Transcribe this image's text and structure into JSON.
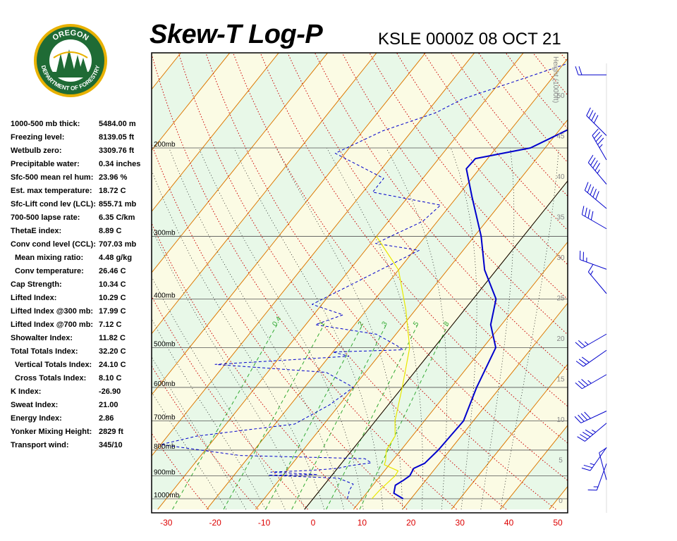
{
  "header": {
    "title": "Skew-T Log-P",
    "station": "KSLE 0000Z 08 OCT 21"
  },
  "logo": {
    "top_text": "OREGON",
    "bottom_text": "DEPARTMENT OF FORESTRY"
  },
  "indices": [
    {
      "label": "1000-500 mb thick:",
      "value": "5484.00 m"
    },
    {
      "label": "Freezing level:",
      "value": "8139.05 ft"
    },
    {
      "label": "Wetbulb zero:",
      "value": "3309.76 ft"
    },
    {
      "label": "Precipitable water:",
      "value": "0.34 inches"
    },
    {
      "label": "Sfc-500 mean rel hum:",
      "value": "23.96 %"
    },
    {
      "label": "Est. max temperature:",
      "value": "18.72 C"
    },
    {
      "label": "Sfc-Lift cond lev (LCL):",
      "value": "855.71 mb"
    },
    {
      "label": "700-500 lapse rate:",
      "value": "6.35 C/km"
    },
    {
      "label": "ThetaE index:",
      "value": "8.89 C"
    },
    {
      "label": "Conv cond level (CCL):",
      "value": "707.03 mb"
    },
    {
      "label": "Mean mixing ratio:",
      "value": "4.48 g/kg",
      "indent": true
    },
    {
      "label": "Conv temperature:",
      "value": "26.46 C",
      "indent": true
    },
    {
      "label": "Cap Strength:",
      "value": "10.34 C"
    },
    {
      "label": "Lifted Index:",
      "value": "10.29 C"
    },
    {
      "label": "Lifted Index @300 mb:",
      "value": "17.99 C"
    },
    {
      "label": "Lifted Index @700 mb:",
      "value": "7.12 C"
    },
    {
      "label": "Showalter Index:",
      "value": "11.82 C"
    },
    {
      "label": "Total Totals Index:",
      "value": "32.20 C"
    },
    {
      "label": "Vertical Totals Index:",
      "value": "24.10 C",
      "indent": true
    },
    {
      "label": "Cross Totals Index:",
      "value": "8.10 C",
      "indent": true
    },
    {
      "label": "K Index:",
      "value": "-26.90"
    },
    {
      "label": "Sweat Index:",
      "value": "21.00"
    },
    {
      "label": "Energy Index:",
      "value": "2.86"
    },
    {
      "label": "Yonker Mixing Height:",
      "value": "2829 ft"
    },
    {
      "label": "Transport wind:",
      "value": "345/10"
    }
  ],
  "colors": {
    "temperature": "#0000cc",
    "dewpoint": "#0000cc",
    "parcel": "#e8e800",
    "isotherm": "#dd7700",
    "dry_adiabat": "#cc0000",
    "moist_adiabat": "#000000",
    "mixing_ratio": "#33aa33",
    "axis_tick": "#dd0000",
    "band_light": "#fbfbe4",
    "band_green": "#e8f8e8",
    "seal_green": "#1f6b35",
    "seal_gold": "#e8b100"
  },
  "chart_data": {
    "type": "line",
    "title": "Skew-T Log-P",
    "xlabel": "",
    "ylabel": "",
    "x_ticks": [
      -30,
      -20,
      -10,
      0,
      10,
      20,
      30,
      40,
      50
    ],
    "xlim": [
      -30,
      50
    ],
    "pressure_levels": [
      200,
      300,
      400,
      500,
      600,
      700,
      800,
      900,
      1000
    ],
    "pressure_level_labels": [
      "200mb",
      "300mb",
      "400mb",
      "500mb",
      "600mb",
      "700mb",
      "800mb",
      "900mb",
      "1000mb"
    ],
    "height_axis_label": "Height (1000ft)",
    "height_ticks": [
      0,
      5,
      10,
      15,
      20,
      25,
      30,
      35,
      40,
      45,
      50
    ],
    "mixing_ratio_labels": [
      "0.4",
      "1",
      "2",
      "3",
      "5",
      "8"
    ],
    "mixing_ratio_values": [
      0.4,
      1,
      2,
      3,
      5,
      8
    ],
    "series": [
      {
        "name": "",
        "style": "solid",
        "points": [
          [
            18.4,
            1000
          ],
          [
            15.6,
            975
          ],
          [
            14.6,
            940
          ],
          [
            15.4,
            920
          ],
          [
            16.0,
            900
          ],
          [
            15.6,
            870
          ],
          [
            17.0,
            850
          ],
          [
            17.6,
            800
          ],
          [
            18.0,
            700
          ],
          [
            15.2,
            600
          ],
          [
            12.6,
            500
          ],
          [
            7.8,
            450
          ],
          [
            4.7,
            400
          ],
          [
            -2.4,
            350
          ],
          [
            -8.6,
            300
          ],
          [
            -17.0,
            250
          ],
          [
            -22.7,
            220
          ],
          [
            -22.5,
            210
          ],
          [
            -13.0,
            200
          ],
          [
            3.0,
            150
          ],
          [
            14.0,
            120
          ]
        ]
      },
      {
        "name": "",
        "style": "dashed",
        "points": [
          [
            7.0,
            1000
          ],
          [
            6.0,
            960
          ],
          [
            5.8,
            935
          ],
          [
            1.8,
            910
          ],
          [
            -13.0,
            898
          ],
          [
            -3.0,
            895
          ],
          [
            -13.0,
            885
          ],
          [
            -5.0,
            878
          ],
          [
            0.0,
            870
          ],
          [
            2.0,
            860
          ],
          [
            6.0,
            848
          ],
          [
            4.0,
            832
          ],
          [
            -22.0,
            820
          ],
          [
            -40.0,
            780
          ],
          [
            -34.0,
            750
          ],
          [
            -16.0,
            710
          ],
          [
            -12.0,
            650
          ],
          [
            -10.0,
            600
          ],
          [
            -18.0,
            560
          ],
          [
            -42.0,
            540
          ],
          [
            -16.0,
            520
          ],
          [
            -20.0,
            510
          ],
          [
            -6.0,
            505
          ],
          [
            -8.0,
            495
          ],
          [
            -14.0,
            470
          ],
          [
            -28.0,
            450
          ],
          [
            -24.0,
            430
          ],
          [
            -32.0,
            410
          ],
          [
            -19.0,
            320
          ],
          [
            -29.0,
            310
          ],
          [
            -23.0,
            280
          ],
          [
            -22.0,
            260
          ],
          [
            -38.0,
            245
          ],
          [
            -38.0,
            230
          ],
          [
            -52.0,
            205
          ],
          [
            -46.0,
            185
          ],
          [
            -38.0,
            170
          ],
          [
            -35.0,
            160
          ],
          [
            -15.0,
            130
          ],
          [
            -2.0,
            110
          ]
        ]
      },
      {
        "name": "",
        "style": "parcel",
        "points": [
          [
            12.0,
            1000
          ],
          [
            12.2,
            960
          ],
          [
            13.0,
            900
          ],
          [
            12.8,
            880
          ],
          [
            9.0,
            855.7
          ],
          [
            8.6,
            840
          ],
          [
            7.0,
            800
          ],
          [
            6.5,
            750
          ],
          [
            4.0,
            700
          ],
          [
            0.0,
            600
          ],
          [
            -5.0,
            500
          ],
          [
            -12.0,
            420
          ],
          [
            -20.0,
            350
          ],
          [
            -30.0,
            300
          ]
        ]
      }
    ],
    "wind_barbs": [
      {
        "height_kft": 52.5,
        "direction": 270,
        "speed_kt": 20
      },
      {
        "height_kft": 45.0,
        "direction": 315,
        "speed_kt": 40
      },
      {
        "height_kft": 42.0,
        "direction": 330,
        "speed_kt": 45
      },
      {
        "height_kft": 39.0,
        "direction": 320,
        "speed_kt": 45
      },
      {
        "height_kft": 36.0,
        "direction": 310,
        "speed_kt": 50
      },
      {
        "height_kft": 33.5,
        "direction": 300,
        "speed_kt": 40
      },
      {
        "height_kft": 28.5,
        "direction": 290,
        "speed_kt": 25
      },
      {
        "height_kft": 25.5,
        "direction": 320,
        "speed_kt": 15
      },
      {
        "height_kft": 20.5,
        "direction": 240,
        "speed_kt": 25
      },
      {
        "height_kft": 18.5,
        "direction": 235,
        "speed_kt": 30
      },
      {
        "height_kft": 15.5,
        "direction": 240,
        "speed_kt": 35
      },
      {
        "height_kft": 11.0,
        "direction": 245,
        "speed_kt": 40
      },
      {
        "height_kft": 9.5,
        "direction": 230,
        "speed_kt": 45
      },
      {
        "height_kft": 6.5,
        "direction": 215,
        "speed_kt": 25
      },
      {
        "height_kft": 4.5,
        "direction": 200,
        "speed_kt": 15
      },
      {
        "height_kft": 2.5,
        "direction": 345,
        "speed_kt": 10
      }
    ]
  }
}
